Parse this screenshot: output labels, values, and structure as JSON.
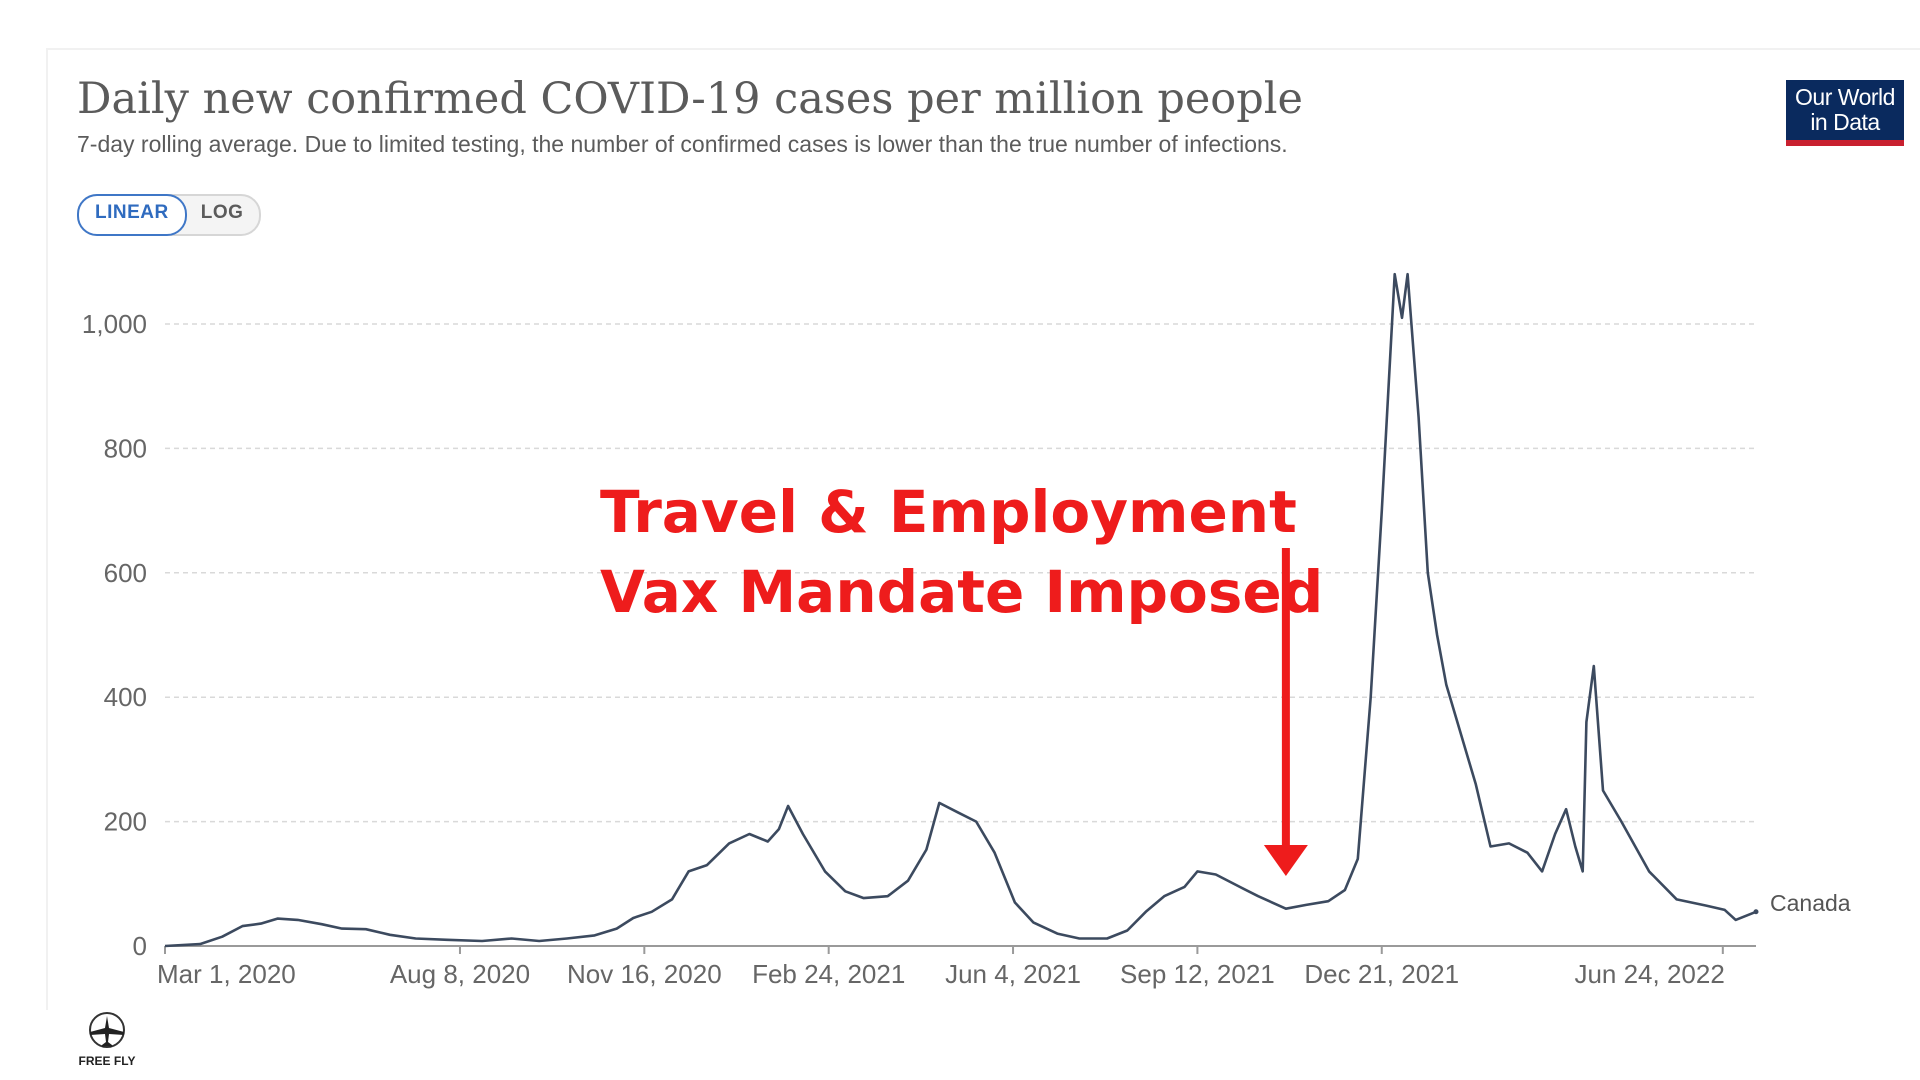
{
  "header": {
    "title": "Daily new confirmed COVID-19 cases per million people",
    "subtitle": "7-day rolling average. Due to limited testing, the number of confirmed cases is lower than the true number of infections."
  },
  "scale_toggle": {
    "linear_label": "LINEAR",
    "log_label": "LOG",
    "selected": "LINEAR"
  },
  "logo": {
    "line1": "Our World",
    "line2": "in Data",
    "bg_color": "#0a2a5e",
    "accent_color": "#c8202f"
  },
  "annotation": {
    "line1": "Travel & Employment",
    "line2": "Vax Mandate Imposed",
    "color": "#ee1c1c",
    "date": "2021-10-30"
  },
  "watermark": {
    "text": "FREE FLY"
  },
  "chart_data": {
    "type": "line",
    "title": "Daily new confirmed COVID-19 cases per million people",
    "subtitle": "7-day rolling average. Due to limited testing, the number of confirmed cases is lower than the true number of infections.",
    "xlabel": "",
    "ylabel": "",
    "ylim": [
      0,
      1000
    ],
    "yticks": [
      0,
      200,
      400,
      600,
      800,
      1000
    ],
    "ytick_labels": [
      "0",
      "200",
      "400",
      "600",
      "800",
      "1,000"
    ],
    "xlim": [
      "2020-03-01",
      "2022-07-12"
    ],
    "xticks": [
      {
        "date": "2020-03-01",
        "label": "Mar 1, 2020"
      },
      {
        "date": "2020-08-08",
        "label": "Aug 8, 2020"
      },
      {
        "date": "2020-11-16",
        "label": "Nov 16, 2020"
      },
      {
        "date": "2021-02-24",
        "label": "Feb 24, 2021"
      },
      {
        "date": "2021-06-04",
        "label": "Jun 4, 2021"
      },
      {
        "date": "2021-09-12",
        "label": "Sep 12, 2021"
      },
      {
        "date": "2021-12-21",
        "label": "Dec 21, 2021"
      },
      {
        "date": "2022-06-24",
        "label": "Jun 24, 2022"
      }
    ],
    "grid": true,
    "line_color": "#3c4a5f",
    "series": [
      {
        "name": "Canada",
        "points": [
          [
            "2020-03-01",
            0
          ],
          [
            "2020-03-20",
            3
          ],
          [
            "2020-04-01",
            15
          ],
          [
            "2020-04-12",
            32
          ],
          [
            "2020-04-22",
            36
          ],
          [
            "2020-05-01",
            44
          ],
          [
            "2020-05-12",
            42
          ],
          [
            "2020-05-25",
            35
          ],
          [
            "2020-06-05",
            28
          ],
          [
            "2020-06-18",
            27
          ],
          [
            "2020-07-01",
            18
          ],
          [
            "2020-07-15",
            12
          ],
          [
            "2020-08-01",
            10
          ],
          [
            "2020-08-20",
            8
          ],
          [
            "2020-09-05",
            12
          ],
          [
            "2020-09-20",
            8
          ],
          [
            "2020-10-05",
            12
          ],
          [
            "2020-10-20",
            17
          ],
          [
            "2020-11-01",
            28
          ],
          [
            "2020-11-10",
            45
          ],
          [
            "2020-11-20",
            55
          ],
          [
            "2020-12-01",
            75
          ],
          [
            "2020-12-10",
            120
          ],
          [
            "2020-12-20",
            130
          ],
          [
            "2021-01-01",
            165
          ],
          [
            "2021-01-12",
            180
          ],
          [
            "2021-01-22",
            168
          ],
          [
            "2021-01-28",
            188
          ],
          [
            "2021-02-02",
            225
          ],
          [
            "2021-02-10",
            180
          ],
          [
            "2021-02-22",
            120
          ],
          [
            "2021-03-05",
            88
          ],
          [
            "2021-03-15",
            77
          ],
          [
            "2021-03-28",
            80
          ],
          [
            "2021-04-08",
            105
          ],
          [
            "2021-04-18",
            155
          ],
          [
            "2021-04-25",
            230
          ],
          [
            "2021-05-05",
            215
          ],
          [
            "2021-05-15",
            200
          ],
          [
            "2021-05-25",
            150
          ],
          [
            "2021-06-05",
            70
          ],
          [
            "2021-06-15",
            38
          ],
          [
            "2021-06-28",
            20
          ],
          [
            "2021-07-10",
            12
          ],
          [
            "2021-07-25",
            12
          ],
          [
            "2021-08-05",
            25
          ],
          [
            "2021-08-15",
            55
          ],
          [
            "2021-08-25",
            80
          ],
          [
            "2021-09-05",
            95
          ],
          [
            "2021-09-12",
            120
          ],
          [
            "2021-09-22",
            115
          ],
          [
            "2021-10-05",
            95
          ],
          [
            "2021-10-15",
            80
          ],
          [
            "2021-10-30",
            60
          ],
          [
            "2021-11-10",
            66
          ],
          [
            "2021-11-22",
            72
          ],
          [
            "2021-12-01",
            90
          ],
          [
            "2021-12-08",
            140
          ],
          [
            "2021-12-15",
            400
          ],
          [
            "2021-12-21",
            700
          ],
          [
            "2021-12-28",
            1080
          ],
          [
            "2022-01-01",
            1010
          ],
          [
            "2022-01-04",
            1080
          ],
          [
            "2022-01-10",
            850
          ],
          [
            "2022-01-15",
            600
          ],
          [
            "2022-01-20",
            500
          ],
          [
            "2022-01-25",
            420
          ],
          [
            "2022-02-01",
            350
          ],
          [
            "2022-02-10",
            260
          ],
          [
            "2022-02-18",
            160
          ],
          [
            "2022-02-28",
            165
          ],
          [
            "2022-03-10",
            150
          ],
          [
            "2022-03-18",
            120
          ],
          [
            "2022-03-25",
            180
          ],
          [
            "2022-03-31",
            220
          ],
          [
            "2022-04-05",
            160
          ],
          [
            "2022-04-09",
            120
          ],
          [
            "2022-04-11",
            360
          ],
          [
            "2022-04-15",
            450
          ],
          [
            "2022-04-20",
            250
          ],
          [
            "2022-04-30",
            200
          ],
          [
            "2022-05-15",
            120
          ],
          [
            "2022-05-30",
            75
          ],
          [
            "2022-06-15",
            65
          ],
          [
            "2022-06-25",
            58
          ],
          [
            "2022-07-01",
            42
          ],
          [
            "2022-07-12",
            55
          ]
        ],
        "end_label": "Canada"
      }
    ]
  }
}
